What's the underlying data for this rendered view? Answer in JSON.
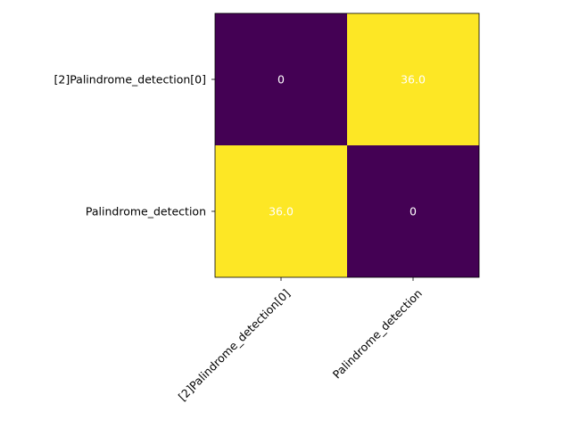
{
  "chart_data": {
    "type": "heatmap",
    "title": "",
    "xlabel": "",
    "ylabel": "",
    "x_categories": [
      "[2]Palindrome_detection[0]",
      "Palindrome_detection"
    ],
    "y_categories": [
      "[2]Palindrome_detection[0]",
      "Palindrome_detection"
    ],
    "values": [
      [
        0,
        36.0
      ],
      [
        36.0,
        0
      ]
    ],
    "value_labels": [
      [
        "0",
        "36.0"
      ],
      [
        "36.0",
        "0"
      ]
    ],
    "colormap": "viridis",
    "colors": {
      "low": "#440154",
      "high": "#fde725",
      "annotation_text": "#ffffff"
    },
    "x_tick_rotation_deg": 45,
    "colorbar": false,
    "grid": false,
    "legend": "none"
  }
}
